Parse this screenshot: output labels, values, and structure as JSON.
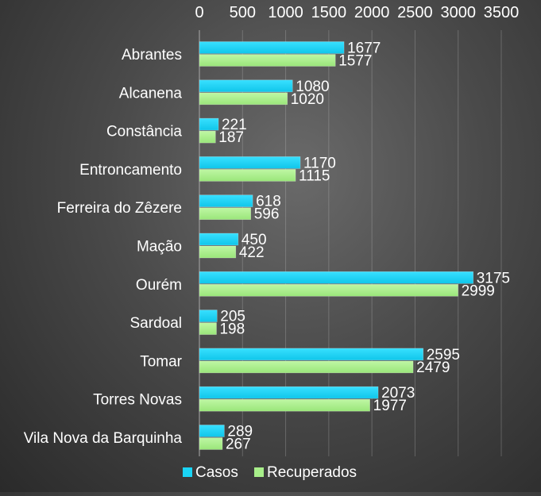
{
  "chart_data": {
    "type": "bar",
    "orientation": "horizontal",
    "categories": [
      "Abrantes",
      "Alcanena",
      "Constância",
      "Entroncamento",
      "Ferreira do Zêzere",
      "Mação",
      "Ourém",
      "Sardoal",
      "Tomar",
      "Torres Novas",
      "Vila Nova da Barquinha"
    ],
    "series": [
      {
        "name": "Casos",
        "color": "#1ad4f5",
        "values": [
          1677,
          1080,
          221,
          1170,
          618,
          450,
          3175,
          205,
          2595,
          2073,
          289
        ]
      },
      {
        "name": "Recuperados",
        "color": "#a8ef8a",
        "values": [
          1577,
          1020,
          187,
          1115,
          596,
          422,
          2999,
          198,
          2479,
          1977,
          267
        ]
      }
    ],
    "xlim": [
      0,
      3500
    ],
    "x_ticks": [
      0,
      500,
      1000,
      1500,
      2000,
      2500,
      3000,
      3500
    ],
    "x_axis_position": "top",
    "grid": "vertical",
    "legend": "bottom",
    "data_labels": true
  }
}
